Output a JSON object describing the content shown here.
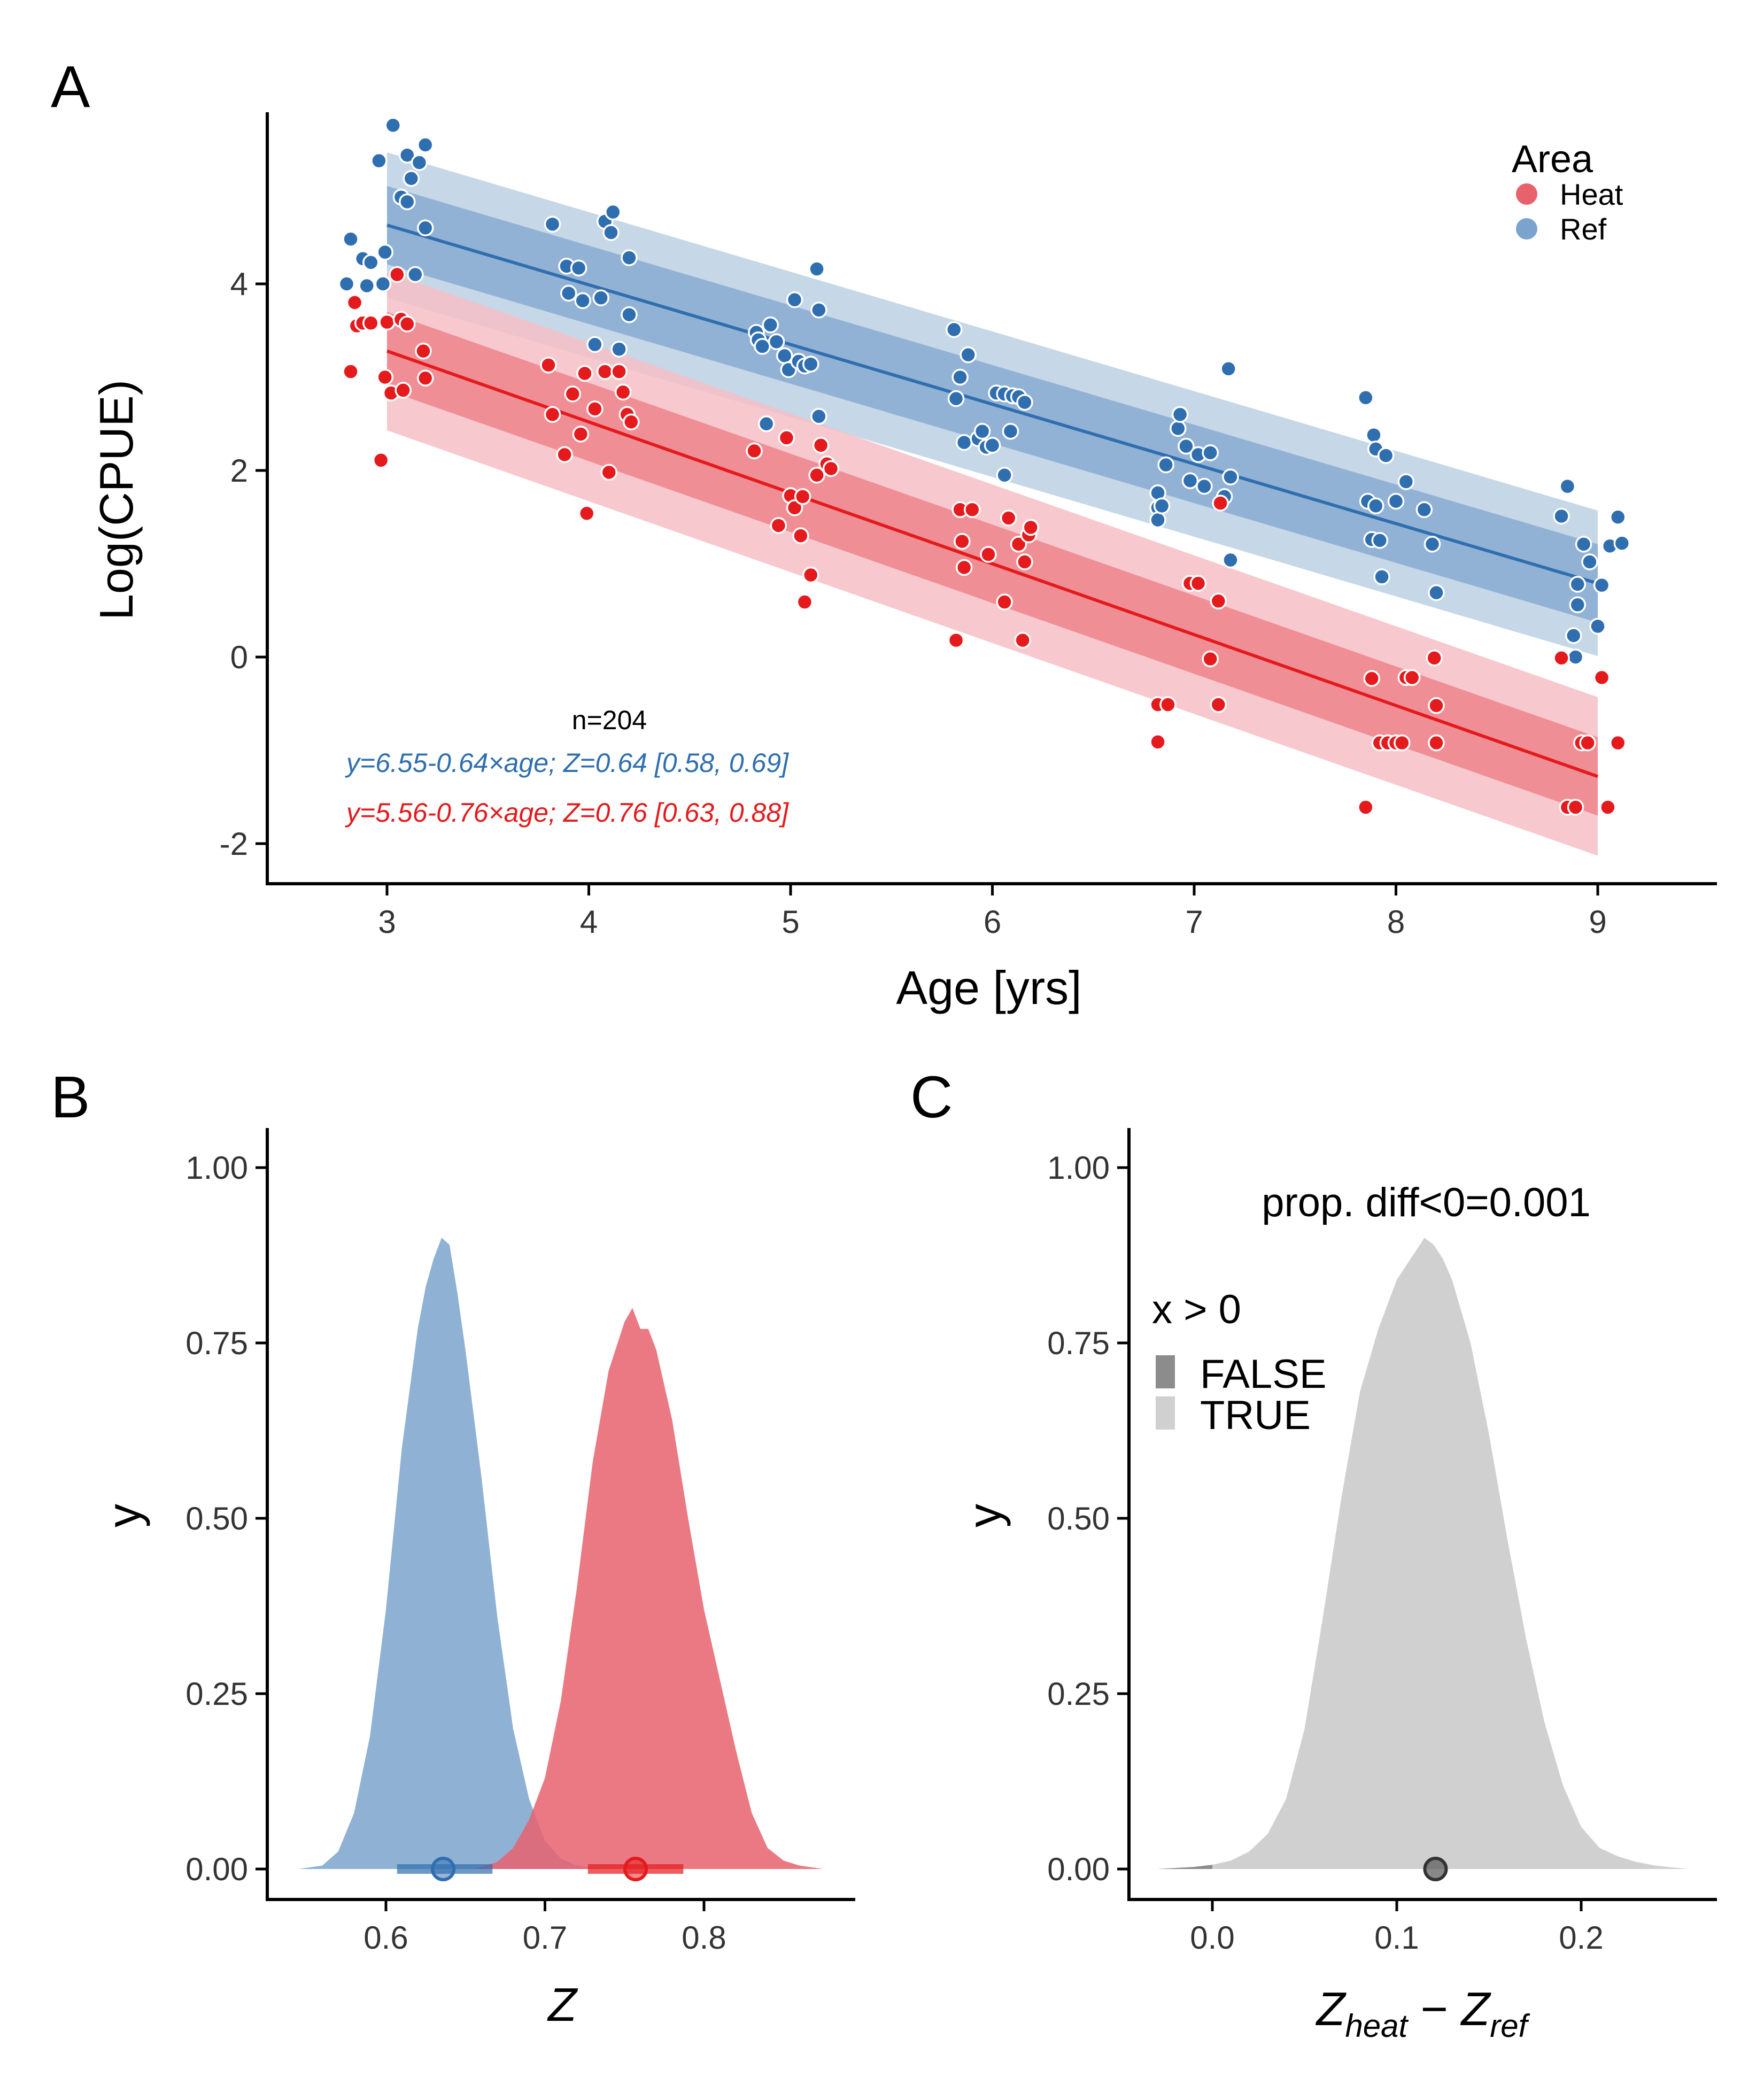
{
  "colors": {
    "heat": "#E41A1C",
    "heat_band_inner": "#EE7F88",
    "heat_band_outer": "#F6BFC5",
    "heat_density": "#E8626E",
    "ref": "#2F6EAF",
    "ref_band_inner": "#92B2D5",
    "ref_band_outer": "#C6D7E8",
    "ref_density": "#7BA3CD",
    "diff_false": "#8c8c8c",
    "diff_true": "#d0d0d0"
  },
  "panel_a": {
    "label": "A",
    "xlabel": "Age [yrs]",
    "ylabel": "Log(CPUE)",
    "annotation_n": "n=204",
    "eq_ref": "y=6.55-0.64×age; Z=0.64 [0.58, 0.69]",
    "eq_heat": "y=5.56-0.76×age; Z=0.76 [0.63, 0.88]",
    "legend": {
      "title": "Area",
      "items": [
        "Heat",
        "Ref"
      ]
    }
  },
  "panel_b": {
    "label": "B",
    "xlabel": "Z",
    "ylabel": "y"
  },
  "panel_c": {
    "label": "C",
    "xlabel_main": "Z",
    "xlabel_sub1": "heat",
    "xlabel_minus": " − ",
    "xlabel_sub2": "ref",
    "ylabel": "y",
    "annotation": "prop. diff<0=0.001",
    "legend": {
      "title": "x > 0",
      "items": [
        "FALSE",
        "TRUE"
      ]
    }
  },
  "chart_data": [
    {
      "panel": "A",
      "type": "scatter",
      "title": "",
      "xlabel": "Age [yrs]",
      "ylabel": "Log(CPUE)",
      "xlim": [
        2.4,
        9.6
      ],
      "ylim": [
        -2.4,
        5.8
      ],
      "xticks": [
        3,
        4,
        5,
        6,
        7,
        8,
        9
      ],
      "yticks": [
        -2,
        0,
        2,
        4
      ],
      "ytick_labels": [
        "-2",
        "0",
        "2",
        "4"
      ],
      "legend_position": "top-right",
      "grid": false,
      "fit_lines": [
        {
          "name": "Ref",
          "intercept": 6.55,
          "slope": -0.64,
          "x_range": [
            3,
            9
          ],
          "inner_halfwidth": 0.42,
          "outer_halfwidth": 0.78
        },
        {
          "name": "Heat",
          "intercept": 5.56,
          "slope": -0.76,
          "x_range": [
            3,
            9
          ],
          "inner_halfwidth": 0.42,
          "outer_halfwidth": 0.85
        }
      ],
      "series": [
        {
          "name": "Ref",
          "points": [
            [
              2.8,
              4.0
            ],
            [
              2.82,
              4.48
            ],
            [
              2.88,
              4.27
            ],
            [
              2.9,
              3.98
            ],
            [
              2.92,
              4.23
            ],
            [
              2.96,
              5.32
            ],
            [
              2.98,
              4.0
            ],
            [
              2.99,
              4.34
            ],
            [
              3.03,
              5.7
            ],
            [
              3.07,
              4.93
            ],
            [
              3.1,
              5.38
            ],
            [
              3.1,
              4.88
            ],
            [
              3.12,
              5.13
            ],
            [
              3.14,
              4.1
            ],
            [
              3.16,
              5.3
            ],
            [
              3.19,
              5.49
            ],
            [
              3.19,
              4.6
            ],
            [
              3.82,
              4.64
            ],
            [
              3.89,
              4.19
            ],
            [
              3.9,
              3.9
            ],
            [
              3.95,
              4.17
            ],
            [
              3.97,
              3.82
            ],
            [
              4.03,
              3.35
            ],
            [
              4.06,
              3.85
            ],
            [
              4.08,
              4.67
            ],
            [
              4.11,
              4.55
            ],
            [
              4.12,
              4.77
            ],
            [
              4.15,
              3.3
            ],
            [
              4.2,
              4.28
            ],
            [
              4.2,
              3.67
            ],
            [
              4.83,
              3.48
            ],
            [
              4.84,
              3.4
            ],
            [
              4.86,
              3.33
            ],
            [
              4.88,
              2.5
            ],
            [
              4.9,
              3.56
            ],
            [
              4.93,
              3.38
            ],
            [
              4.97,
              3.23
            ],
            [
              4.99,
              3.08
            ],
            [
              5.02,
              3.83
            ],
            [
              5.04,
              3.17
            ],
            [
              5.07,
              3.12
            ],
            [
              5.1,
              3.14
            ],
            [
              5.13,
              4.16
            ],
            [
              5.14,
              3.72
            ],
            [
              5.14,
              2.58
            ],
            [
              5.81,
              3.51
            ],
            [
              5.82,
              2.77
            ],
            [
              5.84,
              3.0
            ],
            [
              5.86,
              2.3
            ],
            [
              5.88,
              3.24
            ],
            [
              5.93,
              2.34
            ],
            [
              5.95,
              2.42
            ],
            [
              5.97,
              2.25
            ],
            [
              6.0,
              2.27
            ],
            [
              6.02,
              2.83
            ],
            [
              6.06,
              2.82
            ],
            [
              6.06,
              1.95
            ],
            [
              6.09,
              2.42
            ],
            [
              6.1,
              2.8
            ],
            [
              6.13,
              2.79
            ],
            [
              6.16,
              2.73
            ],
            [
              6.82,
              1.76
            ],
            [
              6.82,
              1.6
            ],
            [
              6.82,
              1.47
            ],
            [
              6.84,
              1.62
            ],
            [
              6.86,
              2.06
            ],
            [
              6.92,
              2.45
            ],
            [
              6.93,
              2.6
            ],
            [
              6.96,
              2.26
            ],
            [
              6.98,
              1.89
            ],
            [
              7.02,
              2.17
            ],
            [
              7.05,
              1.83
            ],
            [
              7.08,
              2.19
            ],
            [
              7.15,
              1.72
            ],
            [
              7.17,
              3.09
            ],
            [
              7.18,
              1.93
            ],
            [
              7.18,
              1.04
            ],
            [
              7.85,
              2.78
            ],
            [
              7.86,
              1.67
            ],
            [
              7.88,
              1.26
            ],
            [
              7.89,
              2.38
            ],
            [
              7.9,
              2.23
            ],
            [
              7.9,
              1.62
            ],
            [
              7.92,
              1.25
            ],
            [
              7.93,
              0.86
            ],
            [
              7.95,
              2.16
            ],
            [
              8.0,
              1.67
            ],
            [
              8.05,
              1.88
            ],
            [
              8.14,
              1.58
            ],
            [
              8.18,
              1.21
            ],
            [
              8.2,
              0.69
            ],
            [
              8.82,
              1.51
            ],
            [
              8.85,
              1.83
            ],
            [
              8.88,
              0.23
            ],
            [
              8.89,
              0.0
            ],
            [
              8.9,
              0.78
            ],
            [
              8.9,
              0.56
            ],
            [
              8.93,
              1.21
            ],
            [
              8.96,
              1.02
            ],
            [
              9.0,
              0.33
            ],
            [
              9.02,
              0.77
            ],
            [
              9.06,
              1.19
            ],
            [
              9.1,
              1.5
            ],
            [
              9.12,
              1.22
            ]
          ]
        },
        {
          "name": "Heat",
          "points": [
            [
              2.82,
              3.06
            ],
            [
              2.84,
              3.8
            ],
            [
              2.85,
              3.55
            ],
            [
              2.88,
              3.58
            ],
            [
              2.92,
              3.58
            ],
            [
              2.97,
              2.11
            ],
            [
              2.99,
              3.0
            ],
            [
              3.0,
              3.59
            ],
            [
              3.02,
              2.83
            ],
            [
              3.05,
              4.1
            ],
            [
              3.07,
              3.62
            ],
            [
              3.08,
              2.86
            ],
            [
              3.1,
              3.57
            ],
            [
              3.18,
              3.28
            ],
            [
              3.19,
              2.99
            ],
            [
              3.8,
              3.13
            ],
            [
              3.82,
              2.6
            ],
            [
              3.88,
              2.17
            ],
            [
              3.92,
              2.82
            ],
            [
              3.96,
              2.39
            ],
            [
              3.98,
              3.04
            ],
            [
              3.99,
              1.54
            ],
            [
              4.03,
              2.66
            ],
            [
              4.08,
              3.06
            ],
            [
              4.1,
              1.98
            ],
            [
              4.15,
              3.06
            ],
            [
              4.17,
              2.84
            ],
            [
              4.19,
              2.6
            ],
            [
              4.21,
              2.52
            ],
            [
              4.82,
              2.21
            ],
            [
              4.94,
              1.41
            ],
            [
              4.98,
              2.35
            ],
            [
              5.0,
              1.73
            ],
            [
              5.02,
              1.6
            ],
            [
              5.05,
              1.3
            ],
            [
              5.06,
              1.72
            ],
            [
              5.07,
              0.59
            ],
            [
              5.1,
              0.88
            ],
            [
              5.13,
              1.95
            ],
            [
              5.15,
              2.27
            ],
            [
              5.18,
              2.07
            ],
            [
              5.2,
              2.02
            ],
            [
              5.82,
              0.18
            ],
            [
              5.84,
              1.58
            ],
            [
              5.85,
              1.24
            ],
            [
              5.86,
              0.96
            ],
            [
              5.9,
              1.58
            ],
            [
              5.98,
              1.1
            ],
            [
              6.06,
              0.59
            ],
            [
              6.08,
              1.49
            ],
            [
              6.13,
              1.21
            ],
            [
              6.15,
              0.18
            ],
            [
              6.16,
              1.02
            ],
            [
              6.18,
              1.31
            ],
            [
              6.19,
              1.39
            ],
            [
              6.82,
              -0.91
            ],
            [
              6.82,
              -0.51
            ],
            [
              6.87,
              -0.51
            ],
            [
              6.98,
              0.79
            ],
            [
              7.02,
              0.79
            ],
            [
              7.08,
              -0.02
            ],
            [
              7.12,
              0.6
            ],
            [
              7.12,
              -0.51
            ],
            [
              7.13,
              1.65
            ],
            [
              7.85,
              -1.61
            ],
            [
              7.88,
              -0.23
            ],
            [
              7.92,
              -0.92
            ],
            [
              7.96,
              -0.92
            ],
            [
              8.0,
              -0.92
            ],
            [
              8.03,
              -0.92
            ],
            [
              8.05,
              -0.22
            ],
            [
              8.08,
              -0.22
            ],
            [
              8.19,
              -0.01
            ],
            [
              8.2,
              -0.52
            ],
            [
              8.2,
              -0.92
            ],
            [
              8.82,
              -0.01
            ],
            [
              8.85,
              -1.61
            ],
            [
              8.89,
              -1.61
            ],
            [
              8.92,
              -0.92
            ],
            [
              8.95,
              -0.92
            ],
            [
              9.02,
              -0.22
            ],
            [
              9.05,
              -1.61
            ],
            [
              9.1,
              -0.92
            ]
          ]
        }
      ]
    },
    {
      "panel": "B",
      "type": "area",
      "title": "",
      "xlabel": "Z",
      "ylabel": "y",
      "xlim": [
        0.535,
        0.893
      ],
      "ylim": [
        -0.04,
        1.05
      ],
      "xticks": [
        0.6,
        0.7,
        0.8
      ],
      "xtick_labels": [
        "0.6",
        "0.7",
        "0.8"
      ],
      "yticks": [
        0.0,
        0.25,
        0.5,
        0.75,
        1.0
      ],
      "ytick_labels": [
        "0.00",
        "0.25",
        "0.50",
        "0.75",
        "1.00"
      ],
      "series": [
        {
          "name": "Ref",
          "x": [
            0.545,
            0.56,
            0.57,
            0.58,
            0.59,
            0.6,
            0.61,
            0.62,
            0.625,
            0.63,
            0.635,
            0.64,
            0.645,
            0.65,
            0.66,
            0.67,
            0.68,
            0.69,
            0.7,
            0.71,
            0.72,
            0.735
          ],
          "values": [
            0.0,
            0.005,
            0.025,
            0.08,
            0.19,
            0.37,
            0.6,
            0.77,
            0.83,
            0.87,
            0.9,
            0.89,
            0.82,
            0.74,
            0.56,
            0.36,
            0.2,
            0.1,
            0.04,
            0.015,
            0.005,
            0.0
          ],
          "point": 0.636,
          "interval": [
            0.607,
            0.667
          ]
        },
        {
          "name": "Heat",
          "x": [
            0.655,
            0.67,
            0.68,
            0.69,
            0.7,
            0.71,
            0.72,
            0.73,
            0.74,
            0.75,
            0.755,
            0.76,
            0.765,
            0.77,
            0.78,
            0.79,
            0.8,
            0.81,
            0.82,
            0.83,
            0.84,
            0.85,
            0.86,
            0.875
          ],
          "values": [
            0.0,
            0.01,
            0.03,
            0.07,
            0.13,
            0.24,
            0.4,
            0.58,
            0.71,
            0.78,
            0.8,
            0.77,
            0.77,
            0.74,
            0.64,
            0.5,
            0.37,
            0.27,
            0.17,
            0.08,
            0.03,
            0.012,
            0.005,
            0.0
          ],
          "point": 0.757,
          "interval": [
            0.727,
            0.787
          ]
        }
      ]
    },
    {
      "panel": "C",
      "type": "area",
      "title": "",
      "xlabel": "Z_heat − Z_ref",
      "ylabel": "y",
      "xlim": [
        -0.045,
        0.265
      ],
      "ylim": [
        -0.04,
        1.05
      ],
      "xticks": [
        0.0,
        0.1,
        0.2
      ],
      "xtick_labels": [
        "0.0",
        "0.1",
        "0.2"
      ],
      "yticks": [
        0.0,
        0.25,
        0.5,
        0.75,
        1.0
      ],
      "ytick_labels": [
        "0.00",
        "0.25",
        "0.50",
        "0.75",
        "1.00"
      ],
      "series": [
        {
          "name": "diff",
          "x": [
            -0.03,
            -0.01,
            0.0,
            0.01,
            0.02,
            0.03,
            0.04,
            0.05,
            0.06,
            0.07,
            0.08,
            0.09,
            0.1,
            0.11,
            0.115,
            0.12,
            0.125,
            0.13,
            0.14,
            0.15,
            0.16,
            0.17,
            0.18,
            0.19,
            0.2,
            0.21,
            0.22,
            0.23,
            0.24,
            0.258
          ],
          "values": [
            0.0,
            0.003,
            0.006,
            0.012,
            0.025,
            0.05,
            0.1,
            0.2,
            0.36,
            0.53,
            0.68,
            0.77,
            0.84,
            0.88,
            0.9,
            0.89,
            0.87,
            0.84,
            0.75,
            0.62,
            0.47,
            0.33,
            0.21,
            0.12,
            0.06,
            0.03,
            0.018,
            0.01,
            0.005,
            0.0
          ],
          "point": 0.121,
          "false_threshold": 0.0
        }
      ]
    }
  ]
}
